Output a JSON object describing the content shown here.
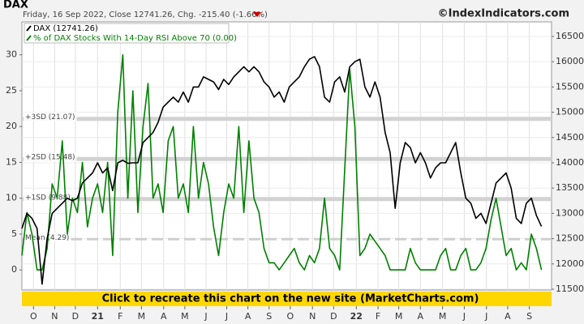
{
  "chart_data": {
    "type": "line",
    "title": "DAX",
    "subtitle": "Friday, 16 Sep 2022, Close 12741.26, Chg. -215.40 (-1.66%)",
    "copyright": "©IndexIndicators.com",
    "banner": "Click to recreate this chart on the new site (MarketCharts.com)",
    "grid": true,
    "x": [
      0,
      1,
      2,
      3,
      4,
      5,
      6,
      7,
      8,
      9,
      10,
      11,
      12,
      13,
      14,
      15,
      16,
      17,
      18,
      19,
      20,
      21,
      22,
      23,
      24,
      25,
      26,
      27,
      28,
      29,
      30,
      31,
      32,
      33,
      34,
      35,
      36,
      37,
      38,
      39,
      40,
      41,
      42,
      43,
      44,
      45,
      46,
      47,
      48,
      49,
      50,
      51,
      52,
      53,
      54,
      55,
      56,
      57,
      58,
      59,
      60,
      61,
      62,
      63,
      64,
      65,
      66,
      67,
      68,
      69,
      70,
      71,
      72,
      73,
      74,
      75,
      76,
      77,
      78,
      79,
      80,
      81,
      82,
      83,
      84,
      85,
      86,
      87,
      88,
      89,
      90,
      91,
      92,
      93,
      94,
      95,
      96,
      97,
      98,
      99,
      100,
      101,
      102,
      103
    ],
    "xlim": [
      0,
      105
    ],
    "xticks": [
      {
        "value": 2.3,
        "label": "O"
      },
      {
        "value": 6.5,
        "label": "N"
      },
      {
        "value": 10.6,
        "label": "D"
      },
      {
        "value": 15,
        "label": "21"
      },
      {
        "value": 19.5,
        "label": "F"
      },
      {
        "value": 23.7,
        "label": "M"
      },
      {
        "value": 28.1,
        "label": "A"
      },
      {
        "value": 32.3,
        "label": "M"
      },
      {
        "value": 36.5,
        "label": "J"
      },
      {
        "value": 40.6,
        "label": "J"
      },
      {
        "value": 44.8,
        "label": "A"
      },
      {
        "value": 49,
        "label": "S"
      },
      {
        "value": 53.2,
        "label": "O"
      },
      {
        "value": 57.6,
        "label": "N"
      },
      {
        "value": 61.8,
        "label": "D"
      },
      {
        "value": 66.3,
        "label": "22"
      },
      {
        "value": 70.6,
        "label": "F"
      },
      {
        "value": 74.7,
        "label": "M"
      },
      {
        "value": 79,
        "label": "A"
      },
      {
        "value": 83.4,
        "label": "M"
      },
      {
        "value": 87.7,
        "label": "J"
      },
      {
        "value": 92.1,
        "label": "J"
      },
      {
        "value": 96.3,
        "label": "A"
      },
      {
        "value": 100.6,
        "label": "S"
      }
    ],
    "ylim": [
      -2.8,
      34.6
    ],
    "yticks": [
      0,
      5,
      10,
      15,
      20,
      25,
      30
    ],
    "y2lim": [
      11484,
      16788
    ],
    "y2ticks": [
      11500,
      12000,
      12500,
      13000,
      13500,
      14000,
      14500,
      15000,
      15500,
      16000,
      16500
    ],
    "reference_lines": [
      {
        "label": "+3SD (21.07)",
        "value": 21.07
      },
      {
        "label": "+2SD (15.48)",
        "value": 15.48
      },
      {
        "label": "+1SD (9.88)",
        "value": 9.88
      },
      {
        "label": "Mean (4.29)",
        "value": 4.29
      }
    ],
    "series": [
      {
        "name": "DAX (12741.26)",
        "color": "#000000",
        "axis": "y2",
        "values": [
          12700,
          13000,
          12900,
          12700,
          11600,
          12500,
          13000,
          13100,
          13200,
          13300,
          13250,
          13300,
          13600,
          13700,
          13800,
          14000,
          13800,
          13900,
          13450,
          14000,
          14050,
          13990,
          14000,
          14000,
          14400,
          14500,
          14600,
          14800,
          15100,
          15200,
          15300,
          15200,
          15400,
          15200,
          15500,
          15500,
          15700,
          15650,
          15600,
          15450,
          15650,
          15550,
          15700,
          15800,
          15900,
          15800,
          15900,
          15800,
          15600,
          15500,
          15300,
          15400,
          15200,
          15500,
          15600,
          15700,
          15900,
          16050,
          16100,
          15900,
          15300,
          15200,
          15600,
          15700,
          15400,
          15900,
          16000,
          16050,
          15500,
          15300,
          15600,
          15300,
          14600,
          14200,
          13100,
          14000,
          14400,
          14300,
          14000,
          14200,
          14000,
          13700,
          13900,
          14000,
          14000,
          14200,
          14400,
          13800,
          13300,
          13200,
          12900,
          13000,
          12800,
          13200,
          13600,
          13700,
          13800,
          13500,
          12900,
          12800,
          13200,
          13300,
          12960,
          12741
        ]
      },
      {
        "name": "% of DAX Stocks With 14-Day RSI Above 70 (0.00)",
        "color": "#008000",
        "axis": "y",
        "values": [
          2,
          8,
          5,
          0,
          0,
          3,
          12,
          10,
          18,
          5,
          10,
          8,
          15,
          6,
          10,
          12,
          8,
          15,
          2,
          22,
          30,
          10,
          25,
          8,
          20,
          26,
          10,
          12,
          8,
          18,
          20,
          10,
          12,
          8,
          20,
          10,
          15,
          12,
          6,
          2,
          8,
          12,
          10,
          20,
          8,
          18,
          10,
          8,
          3,
          1,
          1,
          0,
          1,
          2,
          3,
          1,
          0,
          2,
          1,
          3,
          10,
          3,
          2,
          0,
          14,
          28,
          20,
          2,
          3,
          5,
          4,
          3,
          2,
          0,
          0,
          0,
          0,
          3,
          1,
          0,
          0,
          0,
          0,
          2,
          3,
          0,
          0,
          2,
          3,
          0,
          0,
          1,
          3,
          7,
          10,
          6,
          2,
          3,
          0,
          1,
          0,
          5,
          3,
          0
        ]
      }
    ]
  }
}
